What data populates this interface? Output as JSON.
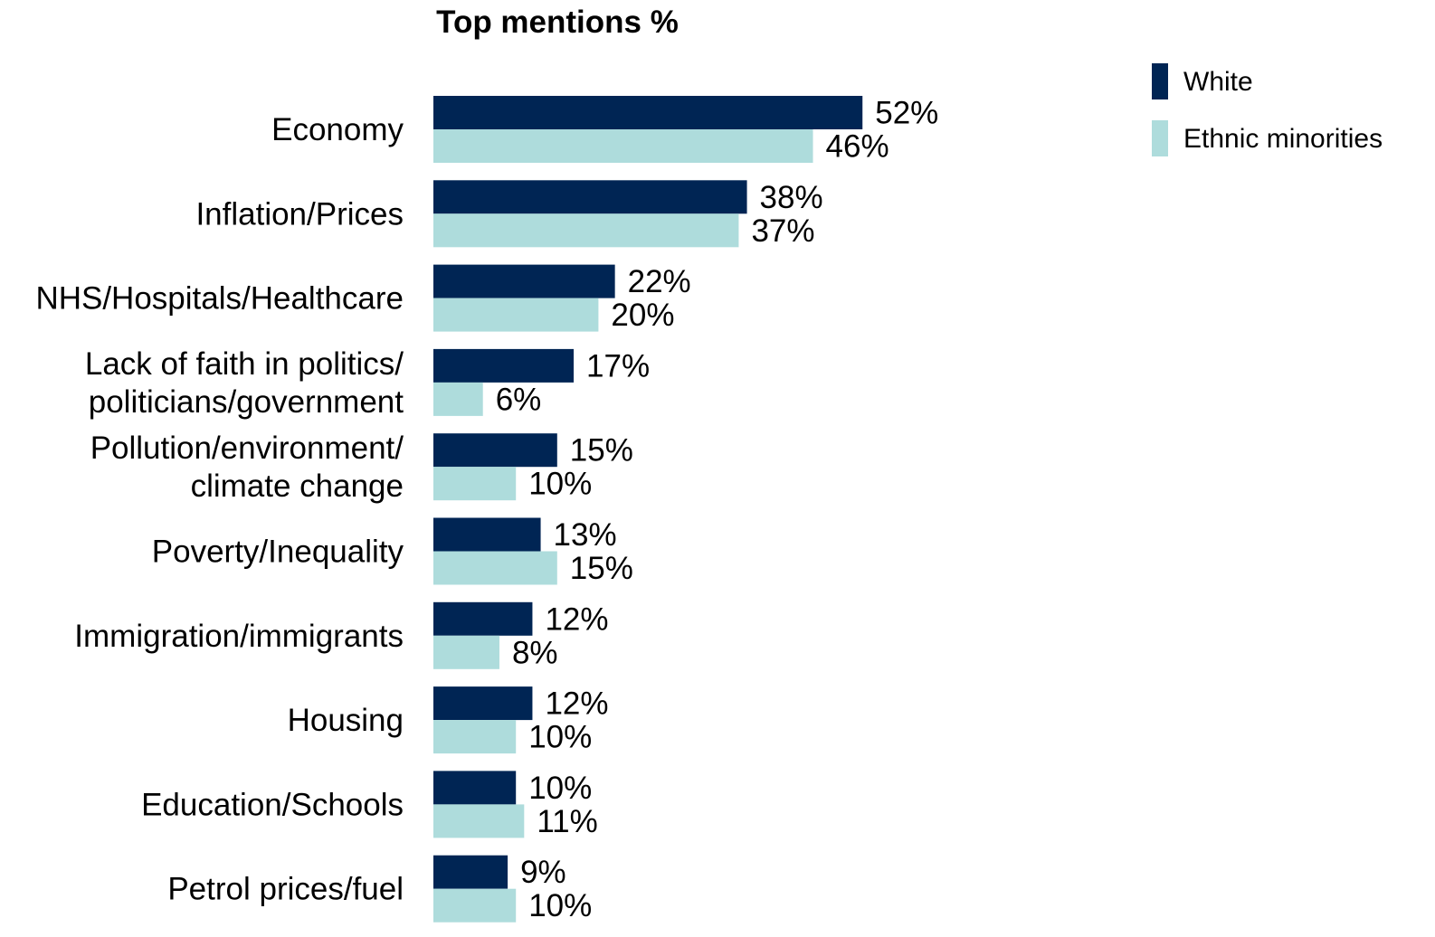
{
  "chart_data": {
    "type": "bar",
    "orientation": "horizontal",
    "title": "Top mentions %",
    "categories": [
      [
        "Economy"
      ],
      [
        "Inflation/Prices"
      ],
      [
        "NHS/Hospitals/Healthcare"
      ],
      [
        "Lack of faith in politics/",
        "politicians/government"
      ],
      [
        "Pollution/environment/",
        "climate change"
      ],
      [
        "Poverty/Inequality"
      ],
      [
        "Immigration/immigrants"
      ],
      [
        "Housing"
      ],
      [
        "Education/Schools"
      ],
      [
        "Petrol prices/fuel"
      ]
    ],
    "series": [
      {
        "name": "White",
        "color": "#002554",
        "values": [
          52,
          38,
          22,
          17,
          15,
          13,
          12,
          12,
          10,
          9
        ],
        "labels": [
          "52%",
          "38%",
          "22%",
          "17%",
          "15%",
          "13%",
          "12%",
          "12%",
          "10%",
          "9%"
        ]
      },
      {
        "name": "Ethnic minorities",
        "color": "#aedcdc",
        "values": [
          46,
          37,
          20,
          6,
          10,
          15,
          8,
          10,
          11,
          10
        ],
        "labels": [
          "46%",
          "37%",
          "20%",
          "6%",
          "10%",
          "15%",
          "8%",
          "10%",
          "11%",
          "10%"
        ]
      }
    ],
    "xlim": [
      0,
      100
    ],
    "grid": false,
    "axes_visible": false,
    "legend_position": "top-right"
  }
}
